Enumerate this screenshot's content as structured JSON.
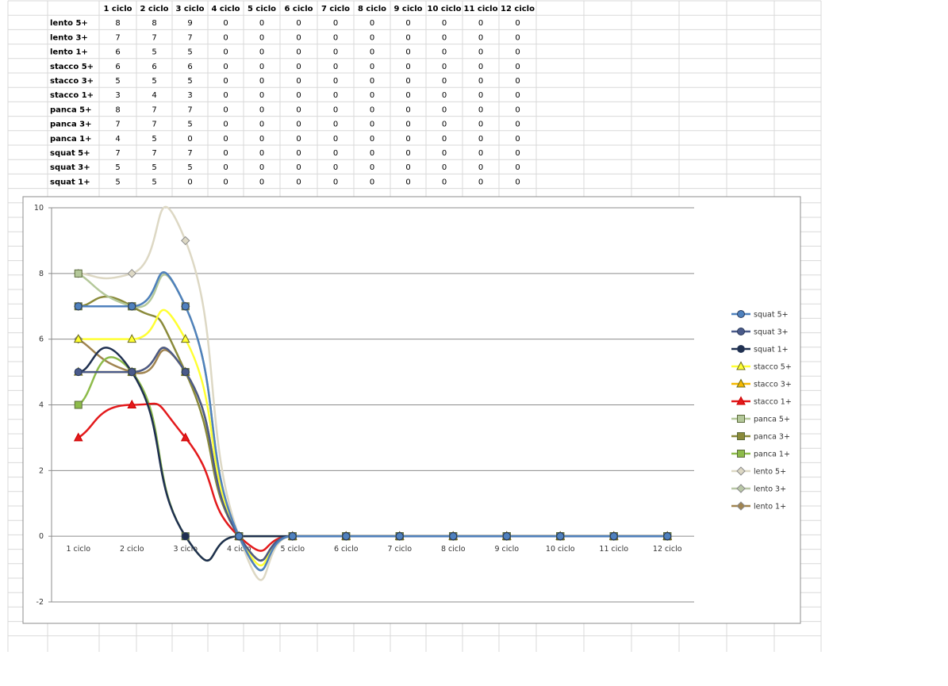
{
  "table": {
    "headers": [
      "1 ciclo",
      "2 ciclo",
      "3 ciclo",
      "4 ciclo",
      "5 ciclo",
      "6 ciclo",
      "7 ciclo",
      "8 ciclo",
      "9 ciclo",
      "10 ciclo",
      "11 ciclo",
      "12 ciclo"
    ],
    "rows": [
      {
        "label": "lento 5+",
        "values": [
          8,
          8,
          9,
          0,
          0,
          0,
          0,
          0,
          0,
          0,
          0,
          0
        ]
      },
      {
        "label": "lento 3+",
        "values": [
          7,
          7,
          7,
          0,
          0,
          0,
          0,
          0,
          0,
          0,
          0,
          0
        ]
      },
      {
        "label": "lento 1+",
        "values": [
          6,
          5,
          5,
          0,
          0,
          0,
          0,
          0,
          0,
          0,
          0,
          0
        ]
      },
      {
        "label": "stacco 5+",
        "values": [
          6,
          6,
          6,
          0,
          0,
          0,
          0,
          0,
          0,
          0,
          0,
          0
        ]
      },
      {
        "label": "stacco 3+",
        "values": [
          5,
          5,
          5,
          0,
          0,
          0,
          0,
          0,
          0,
          0,
          0,
          0
        ]
      },
      {
        "label": "stacco 1+",
        "values": [
          3,
          4,
          3,
          0,
          0,
          0,
          0,
          0,
          0,
          0,
          0,
          0
        ]
      },
      {
        "label": "panca 5+",
        "values": [
          8,
          7,
          7,
          0,
          0,
          0,
          0,
          0,
          0,
          0,
          0,
          0
        ]
      },
      {
        "label": "panca 3+",
        "values": [
          7,
          7,
          5,
          0,
          0,
          0,
          0,
          0,
          0,
          0,
          0,
          0
        ]
      },
      {
        "label": "panca 1+",
        "values": [
          4,
          5,
          0,
          0,
          0,
          0,
          0,
          0,
          0,
          0,
          0,
          0
        ]
      },
      {
        "label": "squat 5+",
        "values": [
          7,
          7,
          7,
          0,
          0,
          0,
          0,
          0,
          0,
          0,
          0,
          0
        ]
      },
      {
        "label": "squat 3+",
        "values": [
          5,
          5,
          5,
          0,
          0,
          0,
          0,
          0,
          0,
          0,
          0,
          0
        ]
      },
      {
        "label": "squat 1+",
        "values": [
          5,
          5,
          0,
          0,
          0,
          0,
          0,
          0,
          0,
          0,
          0,
          0
        ]
      }
    ]
  },
  "chart_data": {
    "type": "line",
    "smooth": true,
    "categories": [
      "1 ciclo",
      "2 ciclo",
      "3 ciclo",
      "4 ciclo",
      "5 ciclo",
      "6 ciclo",
      "7 ciclo",
      "8 ciclo",
      "9 ciclo",
      "10 ciclo",
      "11 ciclo",
      "12 ciclo"
    ],
    "ylim": [
      -2,
      10
    ],
    "yticks": [
      "-2",
      "0",
      "2",
      "4",
      "6",
      "8",
      "10"
    ],
    "grid": true,
    "legend_position": "right",
    "series": [
      {
        "name": "squat 5+",
        "values": [
          7,
          7,
          7,
          0,
          0,
          0,
          0,
          0,
          0,
          0,
          0,
          0
        ],
        "color": "#4f81bd",
        "marker": "circle"
      },
      {
        "name": "squat 3+",
        "values": [
          5,
          5,
          5,
          0,
          0,
          0,
          0,
          0,
          0,
          0,
          0,
          0
        ],
        "color": "#4a5a8a",
        "marker": "circle"
      },
      {
        "name": "squat 1+",
        "values": [
          5,
          5,
          0,
          0,
          0,
          0,
          0,
          0,
          0,
          0,
          0,
          0
        ],
        "color": "#1f3050",
        "marker": "circle"
      },
      {
        "name": "stacco 5+",
        "values": [
          6,
          6,
          6,
          0,
          0,
          0,
          0,
          0,
          0,
          0,
          0,
          0
        ],
        "color": "#ffff33",
        "marker": "triangle"
      },
      {
        "name": "stacco 3+",
        "values": [
          5,
          5,
          5,
          0,
          0,
          0,
          0,
          0,
          0,
          0,
          0,
          0
        ],
        "color": "#f5b800",
        "marker": "triangle"
      },
      {
        "name": "stacco 1+",
        "values": [
          3,
          4,
          3,
          0,
          0,
          0,
          0,
          0,
          0,
          0,
          0,
          0
        ],
        "color": "#e31a1c",
        "marker": "triangle"
      },
      {
        "name": "panca 5+",
        "values": [
          8,
          7,
          7,
          0,
          0,
          0,
          0,
          0,
          0,
          0,
          0,
          0
        ],
        "color": "#b4c89a",
        "marker": "square"
      },
      {
        "name": "panca 3+",
        "values": [
          7,
          7,
          5,
          0,
          0,
          0,
          0,
          0,
          0,
          0,
          0,
          0
        ],
        "color": "#8a8a3a",
        "marker": "square"
      },
      {
        "name": "panca 1+",
        "values": [
          4,
          5,
          0,
          0,
          0,
          0,
          0,
          0,
          0,
          0,
          0,
          0
        ],
        "color": "#8dbb4a",
        "marker": "square"
      },
      {
        "name": "lento 5+",
        "values": [
          8,
          8,
          9,
          0,
          0,
          0,
          0,
          0,
          0,
          0,
          0,
          0
        ],
        "color": "#ddd8c4",
        "marker": "diamond"
      },
      {
        "name": "lento 3+",
        "values": [
          7,
          7,
          7,
          0,
          0,
          0,
          0,
          0,
          0,
          0,
          0,
          0
        ],
        "color": "#b9c7a7",
        "marker": "diamond"
      },
      {
        "name": "lento 1+",
        "values": [
          6,
          5,
          5,
          0,
          0,
          0,
          0,
          0,
          0,
          0,
          0,
          0
        ],
        "color": "#a08450",
        "marker": "diamond"
      }
    ]
  }
}
